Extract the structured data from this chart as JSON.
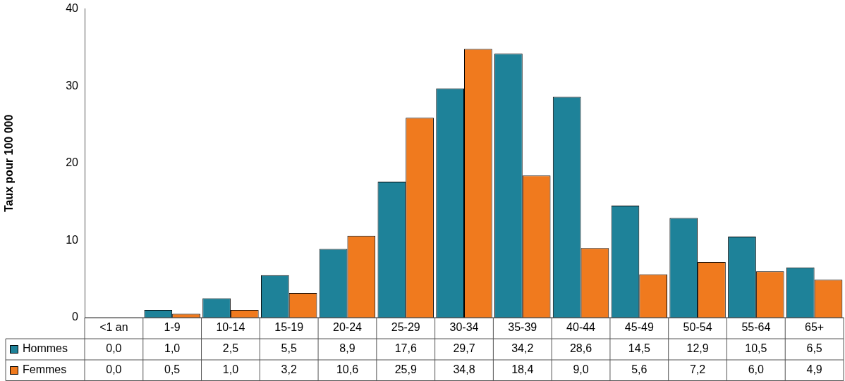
{
  "chart_data": {
    "type": "bar",
    "ylabel": "Taux pour 100 000",
    "categories": [
      "<1 an",
      "1-9",
      "10-14",
      "15-19",
      "20-24",
      "25-29",
      "30-34",
      "35-39",
      "40-44",
      "45-49",
      "50-54",
      "55-64",
      "65+"
    ],
    "series": [
      {
        "name": "Hommes",
        "color": "#1e8299",
        "values": [
          0.0,
          1.0,
          2.5,
          5.5,
          8.9,
          17.6,
          29.7,
          34.2,
          28.6,
          14.5,
          12.9,
          10.5,
          6.5
        ],
        "value_labels": [
          "0,0",
          "1,0",
          "2,5",
          "5,5",
          "8,9",
          "17,6",
          "29,7",
          "34,2",
          "28,6",
          "14,5",
          "12,9",
          "10,5",
          "6,5"
        ]
      },
      {
        "name": "Femmes",
        "color": "#f07a1e",
        "values": [
          0.0,
          0.5,
          1.0,
          3.2,
          10.6,
          25.9,
          34.8,
          18.4,
          9.0,
          5.6,
          7.2,
          6.0,
          4.9
        ],
        "value_labels": [
          "0,0",
          "0,5",
          "1,0",
          "3,2",
          "10,6",
          "25,9",
          "34,8",
          "18,4",
          "9,0",
          "5,6",
          "7,2",
          "6,0",
          "4,9"
        ]
      }
    ],
    "ylim": [
      0,
      40
    ],
    "yticks": [
      0,
      10,
      20,
      30,
      40
    ],
    "grid": false,
    "legend": "bottom left"
  }
}
